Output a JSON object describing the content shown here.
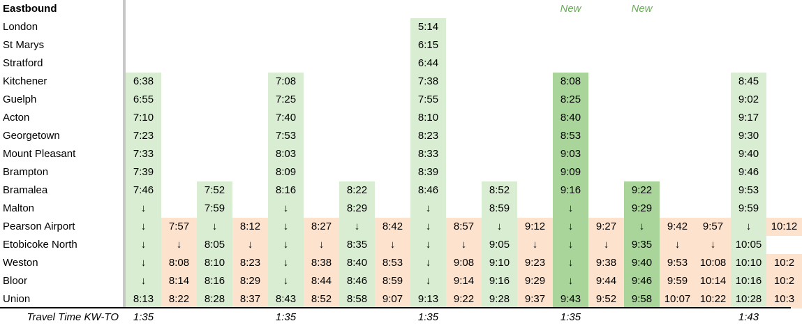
{
  "title": "Eastbound",
  "colors": {
    "direct": "#d9edd3",
    "direct_new": "#a9d49a",
    "connection": "#fde2cd",
    "new_text": "#6aab5a"
  },
  "stations": [
    "London",
    "St Marys",
    "Stratford",
    "Kitchener",
    "Guelph",
    "Acton",
    "Georgetown",
    "Mount Pleasant",
    "Brampton",
    "Bramalea",
    "Malton",
    "Pearson Airport",
    "Etobicoke North",
    "Weston",
    "Bloor",
    "Union"
  ],
  "footer_label": "Travel Time KW-TO",
  "columns": [
    {
      "type": "direct",
      "times": [
        "",
        "",
        "",
        "6:38",
        "6:55",
        "7:10",
        "7:23",
        "7:33",
        "7:39",
        "7:46",
        "↓",
        "↓",
        "↓",
        "↓",
        "↓",
        "8:13"
      ],
      "badge": "",
      "travel": "1:35"
    },
    {
      "type": "connection",
      "times": [
        "",
        "",
        "",
        "",
        "",
        "",
        "",
        "",
        "",
        "",
        "",
        "7:57",
        "↓",
        "8:08",
        "8:14",
        "8:22"
      ],
      "badge": "",
      "travel": ""
    },
    {
      "type": "direct",
      "times": [
        "",
        "",
        "",
        "",
        "",
        "",
        "",
        "",
        "",
        "7:52",
        "7:59",
        "↓",
        "8:05",
        "8:10",
        "8:16",
        "8:28"
      ],
      "badge": "",
      "travel": ""
    },
    {
      "type": "connection",
      "times": [
        "",
        "",
        "",
        "",
        "",
        "",
        "",
        "",
        "",
        "",
        "",
        "8:12",
        "↓",
        "8:23",
        "8:29",
        "8:37"
      ],
      "badge": "",
      "travel": ""
    },
    {
      "type": "direct",
      "times": [
        "",
        "",
        "",
        "7:08",
        "7:25",
        "7:40",
        "7:53",
        "8:03",
        "8:09",
        "8:16",
        "↓",
        "↓",
        "↓",
        "↓",
        "↓",
        "8:43"
      ],
      "badge": "",
      "travel": "1:35"
    },
    {
      "type": "connection",
      "times": [
        "",
        "",
        "",
        "",
        "",
        "",
        "",
        "",
        "",
        "",
        "",
        "8:27",
        "↓",
        "8:38",
        "8:44",
        "8:52"
      ],
      "badge": "",
      "travel": ""
    },
    {
      "type": "direct",
      "times": [
        "",
        "",
        "",
        "",
        "",
        "",
        "",
        "",
        "",
        "8:22",
        "8:29",
        "↓",
        "8:35",
        "8:40",
        "8:46",
        "8:58"
      ],
      "badge": "",
      "travel": ""
    },
    {
      "type": "connection",
      "times": [
        "",
        "",
        "",
        "",
        "",
        "",
        "",
        "",
        "",
        "",
        "",
        "8:42",
        "↓",
        "8:53",
        "8:59",
        "9:07"
      ],
      "badge": "",
      "travel": ""
    },
    {
      "type": "direct",
      "times": [
        "5:14",
        "6:15",
        "6:44",
        "7:38",
        "7:55",
        "8:10",
        "8:23",
        "8:33",
        "8:39",
        "8:46",
        "↓",
        "↓",
        "↓",
        "↓",
        "↓",
        "9:13"
      ],
      "badge": "",
      "travel": "1:35"
    },
    {
      "type": "connection",
      "times": [
        "",
        "",
        "",
        "",
        "",
        "",
        "",
        "",
        "",
        "",
        "",
        "8:57",
        "↓",
        "9:08",
        "9:14",
        "9:22"
      ],
      "badge": "",
      "travel": ""
    },
    {
      "type": "direct",
      "times": [
        "",
        "",
        "",
        "",
        "",
        "",
        "",
        "",
        "",
        "8:52",
        "8:59",
        "↓",
        "9:05",
        "9:10",
        "9:16",
        "9:28"
      ],
      "badge": "",
      "travel": ""
    },
    {
      "type": "connection",
      "times": [
        "",
        "",
        "",
        "",
        "",
        "",
        "",
        "",
        "",
        "",
        "",
        "9:12",
        "↓",
        "9:23",
        "9:29",
        "9:37"
      ],
      "badge": "",
      "travel": ""
    },
    {
      "type": "direct_new",
      "times": [
        "",
        "",
        "",
        "8:08",
        "8:25",
        "8:40",
        "8:53",
        "9:03",
        "9:09",
        "9:16",
        "↓",
        "↓",
        "↓",
        "↓",
        "↓",
        "9:43"
      ],
      "badge": "New",
      "travel": "1:35"
    },
    {
      "type": "connection",
      "times": [
        "",
        "",
        "",
        "",
        "",
        "",
        "",
        "",
        "",
        "",
        "",
        "9:27",
        "↓",
        "9:38",
        "9:44",
        "9:52"
      ],
      "badge": "",
      "travel": ""
    },
    {
      "type": "direct_new",
      "times": [
        "",
        "",
        "",
        "",
        "",
        "",
        "",
        "",
        "",
        "9:22",
        "9:29",
        "↓",
        "9:35",
        "9:40",
        "9:46",
        "9:58"
      ],
      "badge": "New",
      "travel": ""
    },
    {
      "type": "connection",
      "times": [
        "",
        "",
        "",
        "",
        "",
        "",
        "",
        "",
        "",
        "",
        "",
        "9:42",
        "↓",
        "9:53",
        "9:59",
        "10:07"
      ],
      "badge": "",
      "travel": ""
    },
    {
      "type": "connection",
      "times": [
        "",
        "",
        "",
        "",
        "",
        "",
        "",
        "",
        "",
        "",
        "",
        "9:57",
        "↓",
        "10:08",
        "10:14",
        "10:22"
      ],
      "badge": "",
      "travel": ""
    },
    {
      "type": "direct",
      "times": [
        "",
        "",
        "",
        "8:45",
        "9:02",
        "9:17",
        "9:30",
        "9:40",
        "9:46",
        "9:53",
        "9:59",
        "↓",
        "10:05",
        "10:10",
        "10:16",
        "10:28"
      ],
      "badge": "",
      "travel": "1:43"
    },
    {
      "type": "connection",
      "times": [
        "",
        "",
        "",
        "",
        "",
        "",
        "",
        "",
        "",
        "",
        "",
        "10:12",
        "",
        "10:2",
        "10:2",
        "10:3"
      ],
      "badge": "",
      "travel": ""
    }
  ]
}
